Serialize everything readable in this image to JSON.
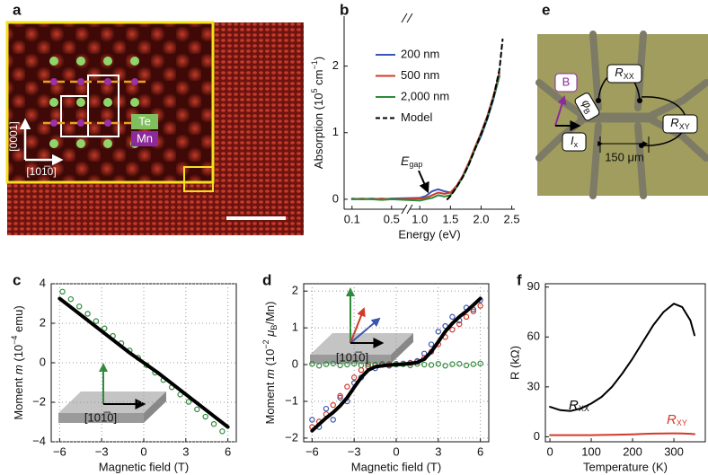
{
  "panel_labels": [
    "a",
    "b",
    "c",
    "d",
    "e",
    "f"
  ],
  "panel_a": {
    "te": "Te",
    "mn": "Mn",
    "vertical_axis": "[0001]",
    "horizontal_axis": "[101̅0]"
  },
  "panel_e": {
    "field": "B",
    "angle": [
      {
        "italic": "φ"
      },
      {
        "sub": "B"
      }
    ],
    "r_xx": [
      {
        "italic": "R"
      },
      {
        "sub": "XX"
      }
    ],
    "r_xy": [
      {
        "italic": "R"
      },
      {
        "sub": "XY"
      }
    ],
    "current": [
      {
        "italic": "I"
      },
      {
        "sub": "x"
      }
    ],
    "scale": "150 μm"
  },
  "chart_data": [
    {
      "type": "line",
      "xlabel": "Energy (eV)",
      "ylabel": [
        {
          "text": "Absorption (10"
        },
        {
          "sup": "5"
        },
        {
          "text": " cm"
        },
        {
          "sup": "−1"
        },
        {
          "text": ")"
        }
      ],
      "xlim": [
        0.02,
        2.55
      ],
      "xbreak": [
        0.62,
        0.85
      ],
      "ylim": [
        -0.15,
        2.75
      ],
      "xticks": [
        0.1,
        0.5,
        {
          "value": 1,
          "label": "1.0"
        },
        1.5,
        {
          "value": 2,
          "label": "2.0"
        },
        2.5
      ],
      "yticks": [
        0,
        1,
        2
      ],
      "legend": "upper left",
      "annotation": [
        {
          "italic": "E"
        },
        {
          "sub": "gap"
        }
      ],
      "x": [
        0.1,
        0.2,
        0.3,
        0.4,
        0.5,
        1.0,
        1.1,
        1.2,
        1.3,
        1.4,
        1.5,
        1.6,
        1.7,
        1.8,
        1.9,
        2.0,
        2.1,
        2.2,
        2.3
      ],
      "series": [
        {
          "name": "200 nm",
          "color": "#3a55b4",
          "values": [
            0.01,
            0,
            0.01,
            0,
            0.01,
            0.02,
            0.05,
            0.12,
            0.15,
            0.12,
            0.1,
            0.2,
            0.35,
            0.55,
            0.75,
            0.95,
            1.2,
            1.5,
            1.85
          ]
        },
        {
          "name": "500 nm",
          "color": "#d23a2a",
          "values": [
            0,
            0.01,
            0,
            0.01,
            0,
            0.01,
            0.02,
            0.06,
            0.1,
            0.08,
            0.1,
            0.2,
            0.35,
            0.55,
            0.78,
            1.0,
            1.25,
            1.55,
            1.9
          ]
        },
        {
          "name": "2,000 nm",
          "color": "#2e8b3a",
          "values": [
            0,
            0,
            0,
            -0.01,
            0,
            -0.02,
            0,
            0.02,
            0.06,
            0.04,
            0.06,
            0.18,
            0.33,
            0.52,
            0.75,
            0.98,
            1.22,
            1.52,
            1.86
          ]
        },
        {
          "name": "Model",
          "color": "#000000",
          "dash": true,
          "x": [
            1.45,
            1.5,
            1.6,
            1.7,
            1.8,
            1.9,
            2.0,
            2.1,
            2.2,
            2.3,
            2.35
          ],
          "values": [
            0,
            0.05,
            0.18,
            0.33,
            0.52,
            0.75,
            0.98,
            1.22,
            1.52,
            1.95,
            2.4
          ]
        }
      ]
    },
    {
      "type": "scatter",
      "xlabel": "Magnetic field (T)",
      "ylabel": [
        {
          "text": "Moment "
        },
        {
          "italic": "m"
        },
        {
          "text": " (10"
        },
        {
          "sup": "−4"
        },
        {
          "text": " emu)"
        }
      ],
      "xlim": [
        -6.6,
        6.6
      ],
      "ylim": [
        -4,
        4
      ],
      "xticks": [
        {
          "value": -6,
          "label": "−6"
        },
        {
          "value": -3,
          "label": "−3"
        },
        0,
        3,
        6
      ],
      "yticks": [
        {
          "value": -4,
          "label": "−4"
        },
        {
          "value": -2,
          "label": "−2"
        },
        0,
        2,
        4
      ],
      "grid": true,
      "inset_label": "[101̅0]",
      "series": [
        {
          "color": "#2e8b3a",
          "marker": "circle",
          "x": [
            -5.8,
            -5.2,
            -4.6,
            -4,
            -3.4,
            -2.8,
            -2.2,
            -1.6,
            -1,
            -0.4,
            0.2,
            0.8,
            1.4,
            2,
            2.6,
            3.2,
            3.8,
            4.4,
            5,
            5.6
          ],
          "values": [
            3.6,
            3.22,
            2.85,
            2.48,
            2.11,
            1.74,
            1.36,
            0.99,
            0.62,
            0.25,
            -0.12,
            -0.5,
            -0.87,
            -1.24,
            -1.61,
            -1.98,
            -2.36,
            -2.73,
            -3.1,
            -3.47
          ]
        },
        {
          "color": "#000000",
          "marker": "dot",
          "x": [
            -6,
            -5,
            -4,
            -3,
            -2,
            -1,
            0,
            1,
            2,
            3,
            4,
            5,
            6
          ],
          "values": [
            3.25,
            2.7,
            2.15,
            1.6,
            1.05,
            0.5,
            0,
            -0.5,
            -1.05,
            -1.6,
            -2.15,
            -2.7,
            -3.25
          ]
        }
      ]
    },
    {
      "type": "scatter",
      "xlabel": "Magnetic field (T)",
      "ylabel": [
        {
          "text": "Moment "
        },
        {
          "italic": "m"
        },
        {
          "text": " (10"
        },
        {
          "sup": "−2"
        },
        {
          "text": " "
        },
        {
          "italic": "μ"
        },
        {
          "sub": "B"
        },
        {
          "text": "/Mn)"
        }
      ],
      "xlim": [
        -6.6,
        6.6
      ],
      "ylim": [
        -2.1,
        2.2
      ],
      "xticks": [
        {
          "value": -6,
          "label": "−6"
        },
        {
          "value": -3,
          "label": "−3"
        },
        0,
        3,
        6
      ],
      "yticks": [
        {
          "value": -2,
          "label": "−2"
        },
        {
          "value": -1,
          "label": "−1"
        },
        0,
        1,
        2
      ],
      "grid": true,
      "inset_label": "[101̅0]",
      "x": [
        -6,
        -5.5,
        -5,
        -4.5,
        -4,
        -3.5,
        -3,
        -2.5,
        -2,
        -1.5,
        -1,
        -0.5,
        0,
        0.5,
        1,
        1.5,
        2,
        2.5,
        3,
        3.5,
        4,
        4.5,
        5,
        5.5,
        6
      ],
      "series": [
        {
          "color": "#3a55b4",
          "marker": "circle",
          "values": [
            -1.5,
            -1.7,
            -1.2,
            -1.5,
            -0.9,
            -1.0,
            -0.5,
            -0.35,
            -0.05,
            -0.1,
            0.02,
            -0.03,
            0.02,
            0.03,
            0.05,
            0.1,
            0.3,
            0.55,
            0.9,
            1.05,
            1.3,
            1.2,
            1.55,
            1.5,
            1.75
          ]
        },
        {
          "color": "#d23a2a",
          "marker": "circle",
          "values": [
            -1.7,
            -1.55,
            -1.35,
            -1.1,
            -0.85,
            -0.6,
            -0.35,
            -0.15,
            -0.05,
            -0.02,
            0,
            0,
            0,
            0.02,
            0.04,
            0.08,
            0.18,
            0.35,
            0.55,
            0.75,
            0.95,
            1.1,
            1.3,
            1.45,
            1.6
          ]
        },
        {
          "color": "#2e8b3a",
          "marker": "circle",
          "values": [
            0.02,
            -0.03,
            0.01,
            0.03,
            -0.02,
            0,
            0.03,
            -0.02,
            0.01,
            0,
            -0.01,
            0.02,
            0,
            0.01,
            -0.02,
            0.02,
            0,
            -0.01,
            0.02,
            -0.03,
            0.01,
            0.02,
            -0.02,
            0.01,
            0.03
          ]
        },
        {
          "color": "#000000",
          "marker": "dot",
          "values": [
            -1.8,
            -1.62,
            -1.45,
            -1.3,
            -1.12,
            -0.9,
            -0.62,
            -0.35,
            -0.15,
            -0.06,
            -0.03,
            -0.01,
            0,
            0.01,
            0.03,
            0.06,
            0.15,
            0.35,
            0.62,
            0.9,
            1.12,
            1.3,
            1.45,
            1.62,
            1.8
          ]
        }
      ]
    },
    {
      "type": "line",
      "xlabel": "Temperature (K)",
      "ylabel": "R (kΩ)",
      "xlim": [
        -11,
        376
      ],
      "ylim": [
        -3,
        92
      ],
      "xticks": [
        0,
        100,
        200,
        300
      ],
      "yticks": [
        0,
        30,
        60,
        90
      ],
      "x": [
        0,
        25,
        50,
        75,
        100,
        125,
        150,
        175,
        200,
        225,
        250,
        275,
        300,
        320,
        340,
        350
      ],
      "series": [
        {
          "name": [
            {
              "italic": "R"
            },
            {
              "sub": "XX"
            }
          ],
          "color": "#000000",
          "values": [
            18,
            16,
            15.5,
            17,
            20,
            24,
            30,
            38,
            47,
            57,
            67,
            75,
            80,
            78,
            70,
            61
          ]
        },
        {
          "name": [
            {
              "italic": "R"
            },
            {
              "sub": "XY"
            }
          ],
          "color": "#d23a2a",
          "values": [
            1,
            1,
            1,
            1,
            1,
            1.1,
            1.2,
            1.3,
            1.5,
            1.7,
            1.9,
            2,
            2.1,
            2,
            1.8,
            1.6
          ]
        }
      ]
    }
  ]
}
